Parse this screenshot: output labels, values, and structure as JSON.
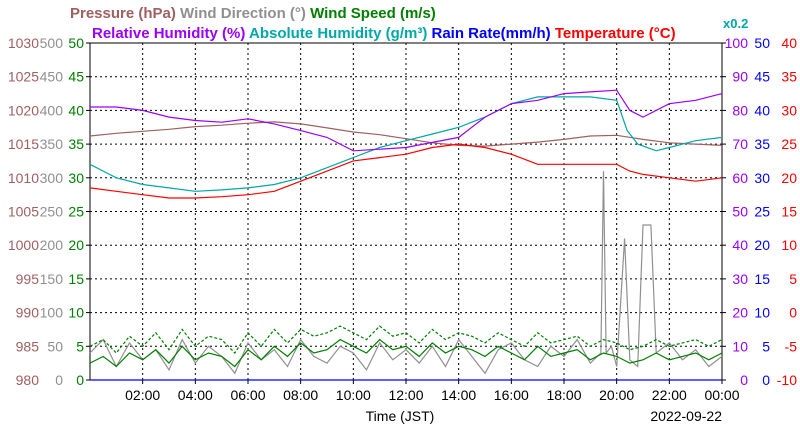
{
  "header": {
    "row1": [
      {
        "text": "Pressure (hPa)",
        "color": "#a06060"
      },
      {
        "text": "Wind Direction (°)",
        "color": "#909090"
      },
      {
        "text": "Wind Speed (m/s)",
        "color": "#008000"
      }
    ],
    "row2": [
      {
        "text": "Relative Humidity (%)",
        "color": "#9a00ff"
      },
      {
        "text": "Absolute Humidity (g/m³)",
        "color": "#00a8a8"
      },
      {
        "text": "Rain Rate(mm/h)",
        "color": "#0000ff"
      },
      {
        "text": "Temperature (°C)",
        "color": "#ff0000"
      }
    ],
    "rain_scale_note": "x0.2"
  },
  "footer": {
    "xlabel": "Time (JST)",
    "date": "2022-09-22"
  },
  "chart_data": {
    "type": "line",
    "x_range": [
      "00:00",
      "24:00"
    ],
    "x_ticks": [
      "02:00",
      "04:00",
      "06:00",
      "08:00",
      "10:00",
      "12:00",
      "14:00",
      "16:00",
      "18:00",
      "20:00",
      "22:00",
      "00:00"
    ],
    "grid": true,
    "axes": {
      "pressure": {
        "label": "Pressure (hPa)",
        "ticks": [
          "980",
          "985",
          "990",
          "995",
          "1000",
          "1005",
          "1010",
          "1015",
          "1020",
          "1025",
          "1030"
        ],
        "range": [
          980,
          1030
        ],
        "color": "#a06060"
      },
      "wind_dir": {
        "label": "Wind Direction (°)",
        "ticks": [
          "0",
          "50",
          "100",
          "150",
          "200",
          "250",
          "300",
          "350",
          "400",
          "450",
          "500"
        ],
        "range": [
          0,
          500
        ],
        "color": "#909090"
      },
      "wind_speed": {
        "label": "Wind Speed (m/s)",
        "ticks": [
          "0",
          "5",
          "10",
          "15",
          "20",
          "25",
          "30",
          "35",
          "40",
          "45",
          "50"
        ],
        "range": [
          0,
          50
        ],
        "color": "#008000"
      },
      "rel_hum": {
        "label": "Relative Humidity (%)",
        "ticks": [
          "0",
          "10",
          "20",
          "30",
          "40",
          "50",
          "60",
          "70",
          "80",
          "90",
          "100"
        ],
        "range": [
          0,
          100
        ],
        "color": "#9a00ff"
      },
      "rain": {
        "label": "Rain Rate(mm/h)",
        "ticks": [
          "0",
          "5",
          "10",
          "15",
          "20",
          "25",
          "30",
          "35",
          "40",
          "45",
          "50"
        ],
        "range": [
          0,
          50
        ],
        "color": "#0000ff"
      },
      "temp": {
        "label": "Temperature (°C)",
        "ticks": [
          "-10",
          "-5",
          "0",
          "5",
          "10",
          "15",
          "20",
          "25",
          "30",
          "35",
          "40"
        ],
        "range": [
          -10,
          40
        ],
        "color": "#ff0000"
      }
    },
    "series": [
      {
        "name": "Pressure",
        "axis": "pressure",
        "color": "#a06060",
        "x": [
          0,
          1,
          2,
          3,
          4,
          5,
          6,
          7,
          8,
          9,
          10,
          11,
          12,
          13,
          14,
          15,
          16,
          17,
          18,
          19,
          20,
          21,
          22,
          23,
          24
        ],
        "y": [
          1016.2,
          1016.6,
          1016.9,
          1017.2,
          1017.6,
          1017.8,
          1018.1,
          1018.3,
          1018.0,
          1017.4,
          1016.8,
          1016.4,
          1015.8,
          1015.2,
          1014.8,
          1014.7,
          1015.0,
          1015.3,
          1015.7,
          1016.2,
          1016.3,
          1015.7,
          1015.2,
          1015.0,
          1014.8
        ]
      },
      {
        "name": "Absolute Humidity",
        "axis": "wind_speed",
        "color": "#00a8a8",
        "x": [
          0,
          0.5,
          1,
          2,
          3,
          4,
          5,
          6,
          7,
          8,
          9,
          10,
          11,
          12,
          13,
          14,
          15,
          16,
          17,
          18,
          19,
          20,
          20.4,
          20.8,
          21.5,
          22,
          23,
          24
        ],
        "y": [
          32,
          31,
          30,
          29,
          28.5,
          28,
          28.2,
          28.5,
          29,
          30,
          31.5,
          33,
          34.5,
          35.5,
          36.5,
          37.5,
          39,
          41,
          42,
          42,
          42,
          41.5,
          37,
          35,
          34,
          34.5,
          35.5,
          36
        ]
      },
      {
        "name": "Relative Humidity",
        "axis": "rel_hum",
        "color": "#9a00ff",
        "x": [
          0,
          1,
          2,
          3,
          4,
          5,
          6,
          7,
          8,
          9,
          10,
          11,
          12,
          13,
          14,
          15,
          16,
          17,
          18,
          19,
          20,
          20.5,
          21,
          22,
          23,
          24
        ],
        "y": [
          81,
          81,
          80,
          78,
          77,
          76.5,
          77.5,
          76,
          74,
          72,
          68,
          68.5,
          69,
          70.5,
          72,
          78,
          82,
          83,
          85,
          85.5,
          86,
          80,
          78,
          82,
          83,
          85
        ]
      },
      {
        "name": "Temperature",
        "axis": "temp",
        "color": "#ff0000",
        "x": [
          0,
          1,
          2,
          3,
          4,
          5,
          6,
          7,
          8,
          9,
          10,
          11,
          12,
          13,
          14,
          15,
          16,
          17,
          18,
          19,
          20,
          20.5,
          21,
          22,
          23,
          24
        ],
        "y": [
          18.5,
          18,
          17.5,
          17,
          17,
          17.2,
          17.5,
          18,
          19.5,
          21,
          22.5,
          23,
          23.5,
          24.5,
          25,
          24.5,
          23.5,
          22,
          22,
          22,
          22,
          21,
          20.5,
          20,
          19.5,
          20
        ]
      },
      {
        "name": "Wind Direction",
        "axis": "wind_dir",
        "color": "#909090",
        "x": [
          0,
          0.5,
          1,
          1.5,
          2,
          2.5,
          3,
          3.5,
          4,
          4.5,
          5,
          5.5,
          6,
          6.5,
          7,
          7.5,
          8,
          8.5,
          9,
          9.5,
          10,
          10.5,
          11,
          11.5,
          12,
          12.5,
          13,
          13.5,
          14,
          14.5,
          15,
          15.5,
          16,
          16.5,
          17,
          17.5,
          18,
          18.5,
          19,
          19.4,
          19.5,
          19.6,
          19.8,
          20,
          20.3,
          20.5,
          20.8,
          21,
          21.3,
          21.5,
          22,
          22.5,
          23,
          23.5,
          24
        ],
        "y": [
          40,
          60,
          20,
          55,
          30,
          45,
          15,
          60,
          25,
          50,
          35,
          10,
          55,
          30,
          45,
          20,
          60,
          35,
          25,
          50,
          40,
          15,
          55,
          30,
          45,
          25,
          50,
          20,
          60,
          35,
          10,
          45,
          55,
          30,
          20,
          50,
          35,
          60,
          25,
          40,
          310,
          40,
          50,
          20,
          210,
          30,
          20,
          230,
          230,
          40,
          55,
          30,
          45,
          20,
          35
        ]
      },
      {
        "name": "Wind Speed",
        "axis": "wind_speed",
        "color": "#008000",
        "x": [
          0,
          0.5,
          1,
          1.5,
          2,
          2.5,
          3,
          3.5,
          4,
          4.5,
          5,
          5.5,
          6,
          6.5,
          7,
          7.5,
          8,
          8.5,
          9,
          9.5,
          10,
          10.5,
          11,
          11.5,
          12,
          12.5,
          13,
          13.5,
          14,
          14.5,
          15,
          15.5,
          16,
          16.5,
          17,
          17.5,
          18,
          18.5,
          19,
          19.5,
          20,
          20.5,
          21,
          21.5,
          22,
          22.5,
          23,
          23.5,
          24
        ],
        "y": [
          2.5,
          3.5,
          2,
          4,
          3,
          4.5,
          2.5,
          5,
          3,
          4,
          3.5,
          2,
          4.5,
          3,
          5,
          3.5,
          5.5,
          4,
          4.5,
          6,
          5,
          4,
          6,
          4.5,
          5,
          3.5,
          5.5,
          4,
          5,
          4.5,
          3.5,
          5,
          4,
          3,
          5,
          3.5,
          4,
          4.5,
          3,
          4,
          3.5,
          2.5,
          3,
          4,
          3,
          3.5,
          4,
          3,
          4
        ]
      },
      {
        "name": "Wind Speed (gust)",
        "axis": "wind_speed",
        "color": "#008000",
        "x": [
          0,
          0.5,
          1,
          1.5,
          2,
          2.5,
          3,
          3.5,
          4,
          4.5,
          5,
          5.5,
          6,
          6.5,
          7,
          7.5,
          8,
          8.5,
          9,
          9.5,
          10,
          10.5,
          11,
          11.5,
          12,
          12.5,
          13,
          13.5,
          14,
          14.5,
          15,
          15.5,
          16,
          16.5,
          17,
          17.5,
          18,
          18.5,
          19,
          19.5,
          20,
          20.5,
          21,
          21.5,
          22,
          22.5,
          23,
          23.5,
          24
        ],
        "y": [
          5,
          6,
          4,
          6.5,
          5,
          7,
          4.5,
          7.5,
          5,
          6.5,
          6,
          4,
          7,
          5,
          7.5,
          5.5,
          7.5,
          6.5,
          7,
          8,
          7,
          6,
          8,
          6.5,
          7,
          5.5,
          7.5,
          6,
          7,
          6.5,
          5.5,
          7,
          6,
          5,
          7,
          5.5,
          6,
          6.5,
          5,
          6,
          5.5,
          4.5,
          5,
          6,
          5,
          5.5,
          6,
          5,
          6
        ]
      },
      {
        "name": "Rain Rate",
        "axis": "rain",
        "color": "#0000ff",
        "x": [
          0,
          24
        ],
        "y": [
          0,
          0
        ]
      }
    ]
  }
}
